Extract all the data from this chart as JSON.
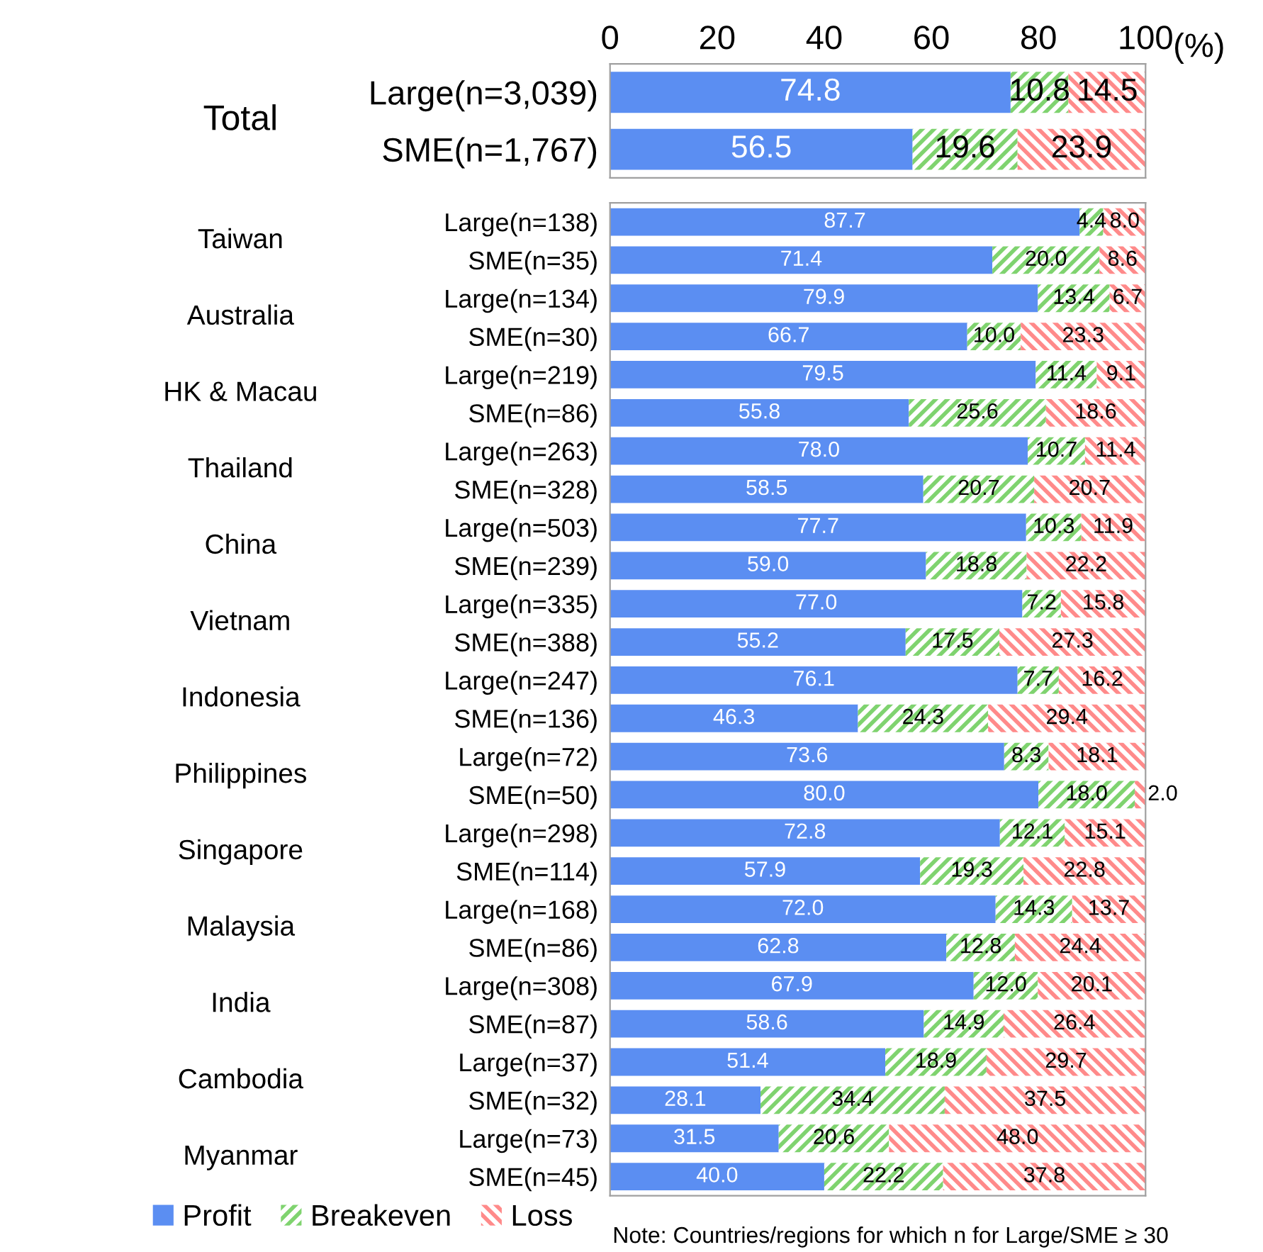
{
  "chart_data": [
    {
      "type": "bar",
      "orientation": "horizontal",
      "stacked": true,
      "xlabel": "(%)",
      "xlim": [
        0,
        100
      ],
      "xticks": [
        0,
        20,
        40,
        60,
        80,
        100
      ],
      "annotations": [
        "Total"
      ],
      "categories": [
        "Large(n=3,039)",
        "SME(n=1,767)"
      ],
      "series": [
        {
          "color": "#5b8ef2",
          "values": [
            74.8,
            56.5
          ],
          "value_labels": [
            "74.8",
            "56.5"
          ]
        },
        {
          "color": "#7fd36f",
          "values": [
            10.8,
            19.6
          ],
          "value_labels": [
            "10.8",
            "19.6"
          ]
        },
        {
          "color": "#ff8a8a",
          "values": [
            14.5,
            23.9
          ],
          "value_labels": [
            "14.5",
            "23.9"
          ]
        }
      ]
    },
    {
      "type": "bar",
      "orientation": "horizontal",
      "stacked": true,
      "xlim": [
        0,
        100
      ],
      "tick_labels": "y",
      "legend": "bottom",
      "annotations": [
        "Taiwan",
        "Australia",
        "HK & Macau",
        "Thailand",
        "China",
        "Vietnam",
        "Indonesia",
        "Philippines",
        "Singapore",
        "Malaysia",
        "India",
        "Cambodia",
        "Myanmar",
        "Note: Countries/regions for which n for Large/SME ≥ 30"
      ],
      "categories": [
        "Large(n=138)",
        "SME(n=35)",
        "Large(n=134)",
        "SME(n=30)",
        "Large(n=219)",
        "SME(n=86)",
        "Large(n=263)",
        "SME(n=328)",
        "Large(n=503)",
        "SME(n=239)",
        "Large(n=335)",
        "SME(n=388)",
        "Large(n=247)",
        "SME(n=136)",
        "Large(n=72)",
        "SME(n=50)",
        "Large(n=298)",
        "SME(n=114)",
        "Large(n=168)",
        "SME(n=86)",
        "Large(n=308)",
        "SME(n=87)",
        "Large(n=37)",
        "SME(n=32)",
        "Large(n=73)",
        "SME(n=45)"
      ],
      "series": [
        {
          "name": "Profit",
          "color": "#5b8ef2",
          "values": [
            87.7,
            71.4,
            79.9,
            66.7,
            79.5,
            55.8,
            78.0,
            58.5,
            77.7,
            59.0,
            77.0,
            55.2,
            76.1,
            46.3,
            73.6,
            80.0,
            72.8,
            57.9,
            72.0,
            62.8,
            67.9,
            58.6,
            51.4,
            28.1,
            31.5,
            40.0
          ],
          "value_labels": [
            "87.7",
            "71.4",
            "79.9",
            "66.7",
            "79.5",
            "55.8",
            "78.0",
            "58.5",
            "77.7",
            "59.0",
            "77.0",
            "55.2",
            "76.1",
            "46.3",
            "73.6",
            "80.0",
            "72.8",
            "57.9",
            "72.0",
            "62.8",
            "67.9",
            "58.6",
            "51.4",
            "28.1",
            "31.5",
            "40.0"
          ]
        },
        {
          "name": "Breakeven",
          "color": "#7fd36f",
          "values": [
            4.4,
            20.0,
            13.4,
            10.0,
            11.4,
            25.6,
            10.7,
            20.7,
            10.3,
            18.8,
            7.2,
            17.5,
            7.7,
            24.3,
            8.3,
            18.0,
            12.1,
            19.3,
            14.3,
            12.8,
            12.0,
            14.9,
            18.9,
            34.4,
            20.6,
            22.2
          ],
          "value_labels": [
            "4.4",
            "20.0",
            "13.4",
            "10.0",
            "11.4",
            "25.6",
            "10.7",
            "20.7",
            "10.3",
            "18.8",
            "7.2",
            "17.5",
            "7.7",
            "24.3",
            "8.3",
            "18.0",
            "12.1",
            "19.3",
            "14.3",
            "12.8",
            "12.0",
            "14.9",
            "18.9",
            "34.4",
            "20.6",
            "22.2"
          ]
        },
        {
          "name": "Loss",
          "color": "#ff8a8a",
          "values": [
            8.0,
            8.6,
            6.7,
            23.3,
            9.1,
            18.6,
            11.4,
            20.7,
            11.9,
            22.2,
            15.8,
            27.3,
            16.2,
            29.4,
            18.1,
            2.0,
            15.1,
            22.8,
            13.7,
            24.4,
            20.1,
            26.4,
            29.7,
            37.5,
            48.0,
            37.8
          ],
          "value_labels": [
            "8.0",
            "8.6",
            "6.7",
            "23.3",
            "9.1",
            "18.6",
            "11.4",
            "20.7",
            "11.9",
            "22.2",
            "15.8",
            "27.3",
            "16.2",
            "29.4",
            "18.1",
            "2.0",
            "15.1",
            "22.8",
            "13.7",
            "24.4",
            "20.1",
            "26.4",
            "29.7",
            "37.5",
            "48.0",
            "37.8"
          ]
        }
      ]
    }
  ]
}
